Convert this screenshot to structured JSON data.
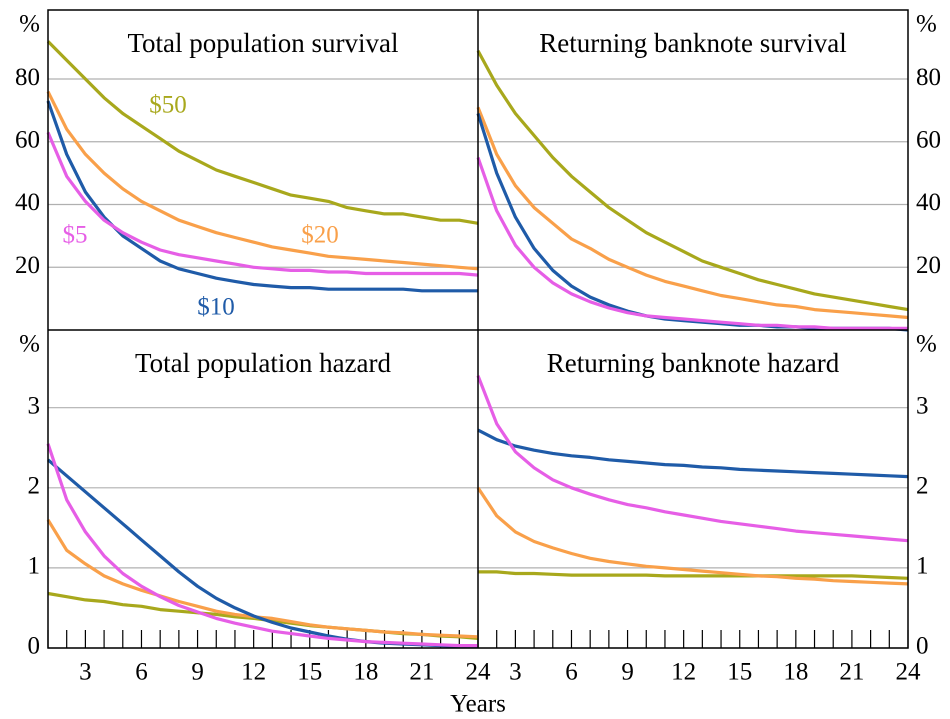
{
  "xlabel": "Years",
  "chart_data": [
    {
      "type": "line",
      "title": "Total population survival",
      "ylabel": "%",
      "y_axis_position": "left",
      "grid": true,
      "x": [
        1,
        2,
        3,
        4,
        5,
        6,
        7,
        8,
        9,
        10,
        11,
        12,
        13,
        14,
        15,
        16,
        17,
        18,
        19,
        20,
        21,
        22,
        23,
        24
      ],
      "xlim": [
        1,
        24
      ],
      "ylim": [
        0,
        102
      ],
      "yticks": [
        20,
        40,
        60,
        80
      ],
      "series": [
        {
          "name": "$50",
          "color": "#a8a81c",
          "values": [
            92,
            86,
            80,
            74,
            69,
            65,
            61,
            57,
            54,
            51,
            49,
            47,
            45,
            43,
            42,
            41,
            39,
            38,
            37,
            37,
            36,
            35,
            35,
            34
          ]
        },
        {
          "name": "$20",
          "color": "#f9a04a",
          "values": [
            76,
            64,
            56,
            50,
            45,
            41,
            38,
            35,
            33,
            31,
            29.5,
            28,
            26.5,
            25.5,
            24.5,
            23.5,
            23,
            22.5,
            22,
            21.5,
            21,
            20.5,
            20,
            19.5
          ]
        },
        {
          "name": "$10",
          "color": "#1f5ba8",
          "values": [
            73,
            56,
            44,
            36,
            30,
            26,
            22,
            19.5,
            18,
            16.5,
            15.5,
            14.5,
            14,
            13.5,
            13.5,
            13,
            13,
            13,
            13,
            13,
            12.5,
            12.5,
            12.5,
            12.5
          ]
        },
        {
          "name": "$5",
          "color": "#e65ee6",
          "values": [
            63,
            49,
            41,
            35,
            31,
            28,
            25.5,
            24,
            23,
            22,
            21,
            20,
            19.5,
            19,
            19,
            18.5,
            18.5,
            18,
            18,
            18,
            18,
            18,
            18,
            17.5
          ]
        }
      ]
    },
    {
      "type": "line",
      "title": "Returning banknote survival",
      "ylabel": "%",
      "y_axis_position": "right",
      "grid": true,
      "x": [
        1,
        2,
        3,
        4,
        5,
        6,
        7,
        8,
        9,
        10,
        11,
        12,
        13,
        14,
        15,
        16,
        17,
        18,
        19,
        20,
        21,
        22,
        23,
        24
      ],
      "xlim": [
        1,
        24
      ],
      "ylim": [
        0,
        102
      ],
      "yticks": [
        20,
        40,
        60,
        80
      ],
      "series": [
        {
          "color": "#a8a81c",
          "values": [
            89,
            78,
            69,
            62,
            55,
            49,
            44,
            39,
            35,
            31,
            28,
            25,
            22,
            20,
            18,
            16,
            14.5,
            13,
            11.5,
            10.5,
            9.5,
            8.5,
            7.5,
            6.5
          ]
        },
        {
          "color": "#f9a04a",
          "values": [
            71,
            56,
            46,
            39,
            34,
            29,
            26,
            22.5,
            20,
            17.5,
            15.5,
            14,
            12.5,
            11,
            10,
            9,
            8,
            7.5,
            6.5,
            6,
            5.5,
            5,
            4.5,
            4
          ]
        },
        {
          "color": "#1f5ba8",
          "values": [
            69,
            50,
            36,
            26,
            19,
            14,
            10.5,
            8,
            6,
            4.5,
            3.5,
            3,
            2.5,
            2,
            1.5,
            1.5,
            1,
            1,
            0.5,
            0.5,
            0.5,
            0.5,
            0.5,
            0
          ]
        },
        {
          "color": "#e65ee6",
          "values": [
            55,
            38,
            27,
            20,
            15,
            11.5,
            9,
            7,
            5.5,
            4.5,
            4,
            3.5,
            3,
            2.5,
            2,
            1.5,
            1.5,
            1,
            1,
            0.5,
            0.5,
            0.5,
            0.5,
            0.5
          ]
        }
      ]
    },
    {
      "type": "line",
      "title": "Total population hazard",
      "ylabel": "%",
      "y_axis_position": "left",
      "grid": true,
      "x": [
        1,
        2,
        3,
        4,
        5,
        6,
        7,
        8,
        9,
        10,
        11,
        12,
        13,
        14,
        15,
        16,
        17,
        18,
        19,
        20,
        21,
        22,
        23,
        24
      ],
      "xlim": [
        1,
        24
      ],
      "ylim": [
        0,
        3.97
      ],
      "yticks": [
        0,
        1,
        2,
        3
      ],
      "xticks": [
        3,
        6,
        9,
        12,
        15,
        18,
        21,
        24
      ],
      "series": [
        {
          "color": "#a8a81c",
          "values": [
            0.68,
            0.64,
            0.6,
            0.58,
            0.54,
            0.52,
            0.48,
            0.46,
            0.44,
            0.42,
            0.39,
            0.37,
            0.34,
            0.31,
            0.28,
            0.26,
            0.24,
            0.22,
            0.2,
            0.18,
            0.17,
            0.15,
            0.14,
            0.12
          ]
        },
        {
          "color": "#f9a04a",
          "values": [
            1.6,
            1.22,
            1.05,
            0.9,
            0.8,
            0.72,
            0.65,
            0.58,
            0.52,
            0.46,
            0.42,
            0.39,
            0.37,
            0.33,
            0.29,
            0.26,
            0.24,
            0.22,
            0.2,
            0.19,
            0.17,
            0.16,
            0.15,
            0.14
          ]
        },
        {
          "color": "#1f5ba8",
          "values": [
            2.35,
            2.15,
            1.95,
            1.75,
            1.55,
            1.35,
            1.15,
            0.95,
            0.77,
            0.62,
            0.5,
            0.4,
            0.32,
            0.25,
            0.2,
            0.15,
            0.11,
            0.08,
            0.06,
            0.05,
            0.04,
            0.03,
            0.02,
            0.02
          ]
        },
        {
          "color": "#e65ee6",
          "values": [
            2.55,
            1.85,
            1.45,
            1.15,
            0.93,
            0.77,
            0.64,
            0.53,
            0.45,
            0.37,
            0.31,
            0.26,
            0.21,
            0.18,
            0.15,
            0.12,
            0.1,
            0.08,
            0.07,
            0.06,
            0.05,
            0.04,
            0.03,
            0.03
          ]
        }
      ]
    },
    {
      "type": "line",
      "title": "Returning banknote hazard",
      "ylabel": "%",
      "y_axis_position": "right",
      "grid": true,
      "x": [
        1,
        2,
        3,
        4,
        5,
        6,
        7,
        8,
        9,
        10,
        11,
        12,
        13,
        14,
        15,
        16,
        17,
        18,
        19,
        20,
        21,
        22,
        23,
        24
      ],
      "xlim": [
        1,
        24
      ],
      "ylim": [
        0,
        3.97
      ],
      "yticks": [
        0,
        1,
        2,
        3
      ],
      "xticks": [
        3,
        6,
        9,
        12,
        15,
        18,
        21,
        24
      ],
      "series": [
        {
          "color": "#a8a81c",
          "values": [
            0.95,
            0.95,
            0.93,
            0.93,
            0.92,
            0.91,
            0.91,
            0.91,
            0.91,
            0.91,
            0.9,
            0.9,
            0.9,
            0.9,
            0.9,
            0.9,
            0.9,
            0.9,
            0.9,
            0.9,
            0.9,
            0.89,
            0.88,
            0.87
          ]
        },
        {
          "color": "#f9a04a",
          "values": [
            2.0,
            1.65,
            1.45,
            1.33,
            1.25,
            1.18,
            1.12,
            1.08,
            1.05,
            1.02,
            1.0,
            0.98,
            0.96,
            0.94,
            0.92,
            0.9,
            0.89,
            0.87,
            0.86,
            0.84,
            0.83,
            0.82,
            0.81,
            0.8
          ]
        },
        {
          "color": "#1f5ba8",
          "values": [
            2.72,
            2.6,
            2.52,
            2.47,
            2.43,
            2.4,
            2.38,
            2.35,
            2.33,
            2.31,
            2.29,
            2.28,
            2.26,
            2.25,
            2.23,
            2.22,
            2.21,
            2.2,
            2.19,
            2.18,
            2.17,
            2.16,
            2.15,
            2.14
          ]
        },
        {
          "color": "#e65ee6",
          "values": [
            3.4,
            2.8,
            2.45,
            2.25,
            2.1,
            2.0,
            1.92,
            1.85,
            1.79,
            1.75,
            1.7,
            1.66,
            1.62,
            1.58,
            1.55,
            1.52,
            1.49,
            1.46,
            1.44,
            1.42,
            1.4,
            1.38,
            1.36,
            1.34
          ]
        }
      ]
    }
  ]
}
